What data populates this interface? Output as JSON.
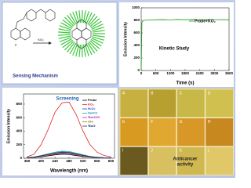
{
  "mechanism": {
    "label": "Sensing Mechanism",
    "reagent": "KO₂",
    "compound": "7"
  },
  "chart_data": [
    {
      "type": "line",
      "title": "Kinetic Study",
      "xlabel": "Time (s)",
      "ylabel": "Emission Intensity",
      "x": [
        0,
        30,
        100,
        300,
        600,
        900,
        1200,
        1500,
        1800,
        2100,
        2400,
        2700,
        3000,
        3300,
        3600
      ],
      "series": [
        {
          "name": "Probe+KO₂",
          "color": "#1a9a1a",
          "values": [
            0,
            770,
            800,
            805,
            810,
            812,
            808,
            815,
            810,
            813,
            809,
            814,
            811,
            812,
            810
          ]
        }
      ],
      "xlim": [
        0,
        3600
      ],
      "xticks": [
        0,
        600,
        1200,
        1800,
        2400,
        3000,
        3600
      ],
      "ylim": [
        0,
        1000
      ],
      "yticks": [
        0,
        200,
        400,
        600,
        800,
        1000
      ]
    },
    {
      "type": "line",
      "title": "Screening",
      "xlabel": "Wavelength (nm)",
      "ylabel": "Emission Intensity",
      "x": [
        360,
        380,
        400,
        420,
        440,
        460,
        480,
        500,
        520,
        540,
        560,
        580,
        600
      ],
      "series": [
        {
          "name": "Probe",
          "color": "#000000",
          "values": [
            5,
            10,
            20,
            35,
            50,
            60,
            55,
            40,
            25,
            15,
            8,
            5,
            3
          ]
        },
        {
          "name": "KO₂",
          "color": "#e02020",
          "values": [
            20,
            60,
            200,
            420,
            680,
            820,
            830,
            650,
            400,
            200,
            90,
            40,
            20
          ]
        },
        {
          "name": "H₂O₂",
          "color": "#2040d0",
          "values": [
            8,
            15,
            30,
            50,
            70,
            85,
            80,
            60,
            40,
            22,
            12,
            7,
            4
          ]
        },
        {
          "name": "NaOCl",
          "color": "#20a0a0",
          "values": [
            10,
            20,
            40,
            65,
            90,
            105,
            100,
            75,
            50,
            28,
            15,
            8,
            5
          ]
        },
        {
          "name": "ᵗBuOOH",
          "color": "#c020c0",
          "values": [
            6,
            12,
            25,
            42,
            60,
            72,
            68,
            50,
            32,
            18,
            10,
            6,
            3
          ]
        },
        {
          "name": "OH·",
          "color": "#808000",
          "values": [
            7,
            14,
            28,
            46,
            65,
            78,
            74,
            55,
            36,
            20,
            11,
            6,
            4
          ]
        },
        {
          "name": "ᵗBuO·",
          "color": "#203080",
          "values": [
            9,
            17,
            34,
            56,
            78,
            92,
            88,
            66,
            44,
            25,
            13,
            7,
            4
          ]
        }
      ],
      "xlim": [
        350,
        610
      ],
      "xticks": [
        360,
        400,
        440,
        480,
        520,
        560,
        600
      ],
      "ylim": [
        0,
        950
      ],
      "yticks": [
        0,
        200,
        400,
        600,
        800
      ]
    }
  ],
  "anticancer": {
    "panels": [
      "A",
      "B",
      "C",
      "D",
      "E",
      "F",
      "G",
      "H",
      "I",
      "J",
      "K",
      "L"
    ],
    "caption": [
      "Anticancer",
      "activity"
    ]
  }
}
